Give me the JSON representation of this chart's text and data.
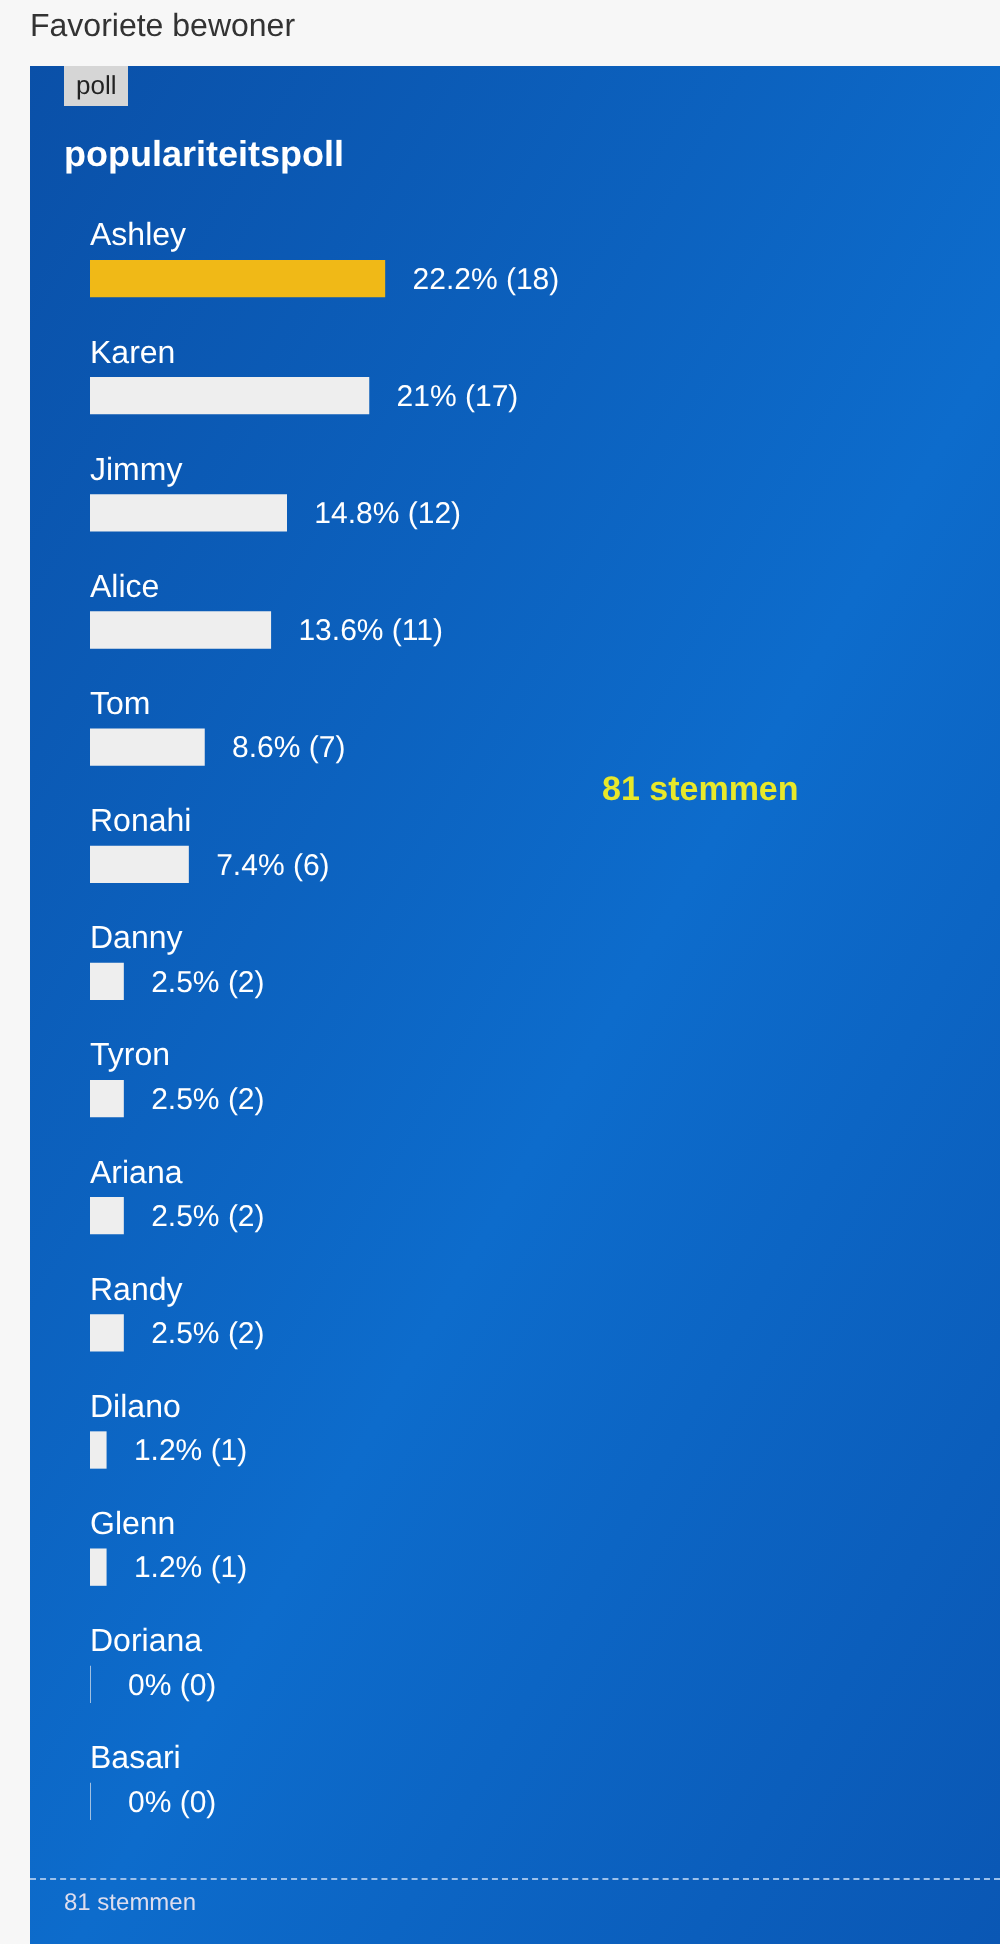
{
  "chart_data": {
    "type": "bar",
    "orientation": "horizontal",
    "title": "populariteitspoll",
    "annotations": [
      "Favoriete bewoner",
      "poll",
      "81 stemmen",
      "81 stemmen"
    ],
    "categories": [
      "Ashley",
      "Karen",
      "Jimmy",
      "Alice",
      "Tom",
      "Ronahi",
      "Danny",
      "Tyron",
      "Ariana",
      "Randy",
      "Dilano",
      "Glenn",
      "Doriana",
      "Basari"
    ],
    "values": [
      22.2,
      21,
      14.8,
      13.6,
      8.6,
      7.4,
      2.5,
      2.5,
      2.5,
      2.5,
      1.2,
      1.2,
      0,
      0
    ],
    "value_labels": [
      "22.2% (18)",
      "21% (17)",
      "14.8% (12)",
      "13.6% (11)",
      "8.6% (7)",
      "7.4% (6)",
      "2.5% (2)",
      "2.5% (2)",
      "2.5% (2)",
      "2.5% (2)",
      "1.2% (1)",
      "1.2% (1)",
      "0% (0)",
      "0% (0)"
    ],
    "colors": [
      "#f0b917",
      "#eeeeee",
      "#eeeeee",
      "#eeeeee",
      "#eeeeee",
      "#eeeeee",
      "#eeeeee",
      "#eeeeee",
      "#eeeeee",
      "#eeeeee",
      "#eeeeee",
      "#eeeeee",
      "#eeeeee",
      "#eeeeee"
    ],
    "legend": false
  }
}
